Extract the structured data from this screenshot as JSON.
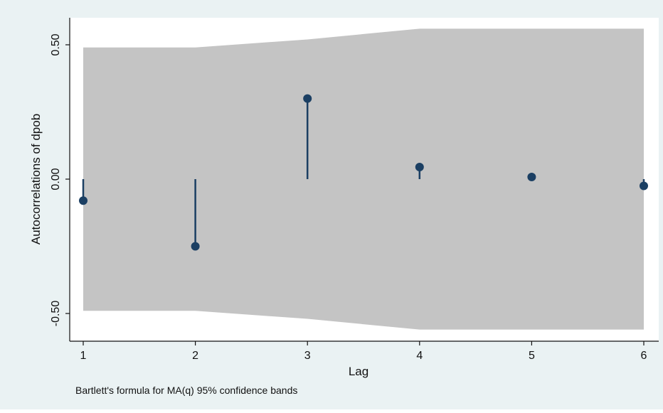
{
  "chart_data": {
    "type": "scatter",
    "subtype": "acf-correlogram-spikes",
    "xlabel": "Lag",
    "ylabel": "Autocorrelations of dpob",
    "note": "Bartlett's formula for MA(q) 95% confidence bands",
    "x": [
      1,
      2,
      3,
      4,
      5,
      6
    ],
    "values": [
      -0.08,
      -0.25,
      0.3,
      0.045,
      0.008,
      -0.025
    ],
    "confidence_band": {
      "upper": [
        0.49,
        0.49,
        0.52,
        0.56,
        0.56,
        0.56
      ],
      "lower": [
        -0.49,
        -0.49,
        -0.52,
        -0.56,
        -0.56,
        -0.56
      ]
    },
    "xticks": [
      1,
      2,
      3,
      4,
      5,
      6
    ],
    "yticks": [
      -0.5,
      0.0,
      0.5
    ],
    "ytick_labels": [
      "-0.50",
      "0.00",
      "0.50"
    ],
    "xlim": [
      1,
      6
    ],
    "ylim": [
      -0.6,
      0.6
    ],
    "grid": false,
    "legend": "none",
    "colors": {
      "background": "#eaf2f3",
      "plot_area": "#ffffff",
      "band": "#c4c4c4",
      "marker": "#1b3f63",
      "axis": "#111111"
    }
  }
}
